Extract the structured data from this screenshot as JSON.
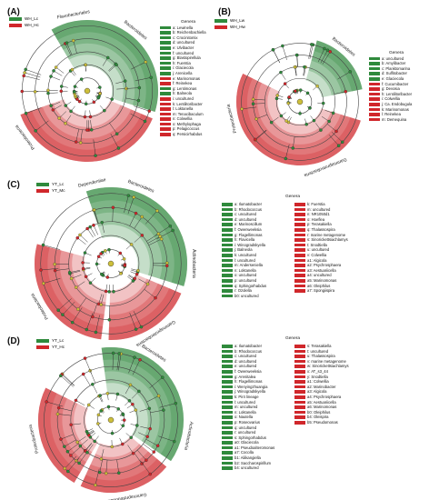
{
  "colors": {
    "green": "#2f8a3c",
    "red": "#d0272b",
    "lightgreen": "#cfe8cf",
    "lightred": "#f5c6c6",
    "yellow": "#cdbf3a"
  },
  "panels": [
    {
      "label": "(A)",
      "groups": [
        "WH_Lc",
        "WH_Hc"
      ],
      "clades": [
        "Flavobacteriales",
        "Bacteroidetes",
        "Proteobacteria"
      ],
      "legend_title": "Genera",
      "legend": [
        {
          "k": "a",
          "n": "Lewinella",
          "c": "g"
        },
        {
          "k": "b",
          "n": "Reichenbachiella",
          "c": "g"
        },
        {
          "k": "c",
          "n": "Crocinitomix",
          "c": "g"
        },
        {
          "k": "d",
          "n": "uncultured",
          "c": "g"
        },
        {
          "k": "e",
          "n": "Ulvibacter",
          "c": "g"
        },
        {
          "k": "f",
          "n": "uncultured",
          "c": "g"
        },
        {
          "k": "g",
          "n": "Blastopirellula",
          "c": "g"
        },
        {
          "k": "h",
          "n": "Fuerstia",
          "c": "g"
        },
        {
          "k": "i",
          "n": "Glaciecola",
          "c": "g"
        },
        {
          "k": "j",
          "n": "Arenicella",
          "c": "g"
        },
        {
          "k": "e",
          "n": "Marinomonas",
          "c": "r"
        },
        {
          "k": "f",
          "n": "Reinekea",
          "c": "r"
        },
        {
          "k": "g",
          "n": "Lentimonas",
          "c": "g"
        },
        {
          "k": "h",
          "n": "Balneola",
          "c": "g"
        },
        {
          "k": "i",
          "n": "uncultured",
          "c": "r"
        },
        {
          "k": "k",
          "n": "Lentilitoribacter",
          "c": "r"
        },
        {
          "k": "l",
          "n": "Loktanella",
          "c": "r"
        },
        {
          "k": "m",
          "n": "Tenacibaculum",
          "c": "r"
        },
        {
          "k": "n",
          "n": "Colwellia",
          "c": "r"
        },
        {
          "k": "o",
          "n": "Methylophaga",
          "c": "r"
        },
        {
          "k": "p",
          "n": "Pelagicoccus",
          "c": "r"
        },
        {
          "k": "q",
          "n": "Persicirhabdus",
          "c": "r"
        }
      ]
    },
    {
      "label": "(B)",
      "groups": [
        "WH_Lw",
        "WH_Hw"
      ],
      "clades": [
        "Bacteroidetes",
        "Gammaproteobacteria",
        "Proteobacteria"
      ],
      "legend_title": "Genera",
      "legend": [
        {
          "k": "a",
          "n": "uncultured",
          "c": "g"
        },
        {
          "k": "b",
          "n": "Amylibacter",
          "c": "g"
        },
        {
          "k": "c",
          "n": "Planktomarina",
          "c": "g"
        },
        {
          "k": "d",
          "n": "Sulfitobacter",
          "c": "g"
        },
        {
          "k": "e",
          "n": "Glaciecola",
          "c": "g"
        },
        {
          "k": "f",
          "n": "Cucumibacter",
          "c": "r"
        },
        {
          "k": "g",
          "n": "Devosia",
          "c": "r"
        },
        {
          "k": "h",
          "n": "Lentilitoribacter",
          "c": "r"
        },
        {
          "k": "i",
          "n": "Colwellia",
          "c": "r"
        },
        {
          "k": "j",
          "n": "Ca. Endobugula",
          "c": "r"
        },
        {
          "k": "k",
          "n": "Marinomonas",
          "c": "r"
        },
        {
          "k": "l",
          "n": "Reinekea",
          "c": "r"
        },
        {
          "k": "m",
          "n": "Demequina",
          "c": "r"
        }
      ]
    },
    {
      "label": "(C)",
      "groups": [
        "YT_Lc",
        "YT_Mc"
      ],
      "clades": [
        "Bacteroidetes",
        "Dependentiae",
        "Actinobacteria",
        "Gammaproteobacteria",
        "Proteobacteria"
      ],
      "legend_title": "Genera",
      "legend1": [
        {
          "k": "a",
          "n": "Ilumatobacter",
          "c": "g"
        },
        {
          "k": "b",
          "n": "Rhodococcus",
          "c": "g"
        },
        {
          "k": "c",
          "n": "uncultured",
          "c": "g"
        },
        {
          "k": "d",
          "n": "uncultured",
          "c": "g"
        },
        {
          "k": "e",
          "n": "Marinoscillum",
          "c": "g"
        },
        {
          "k": "f",
          "n": "Owenweeksia",
          "c": "g"
        },
        {
          "k": "g",
          "n": "Flagellimonas",
          "c": "g"
        },
        {
          "k": "h",
          "n": "Flavicella",
          "c": "g"
        },
        {
          "k": "i",
          "n": "Winogradskyella",
          "c": "g"
        },
        {
          "k": "j",
          "n": "Balneola",
          "c": "g"
        },
        {
          "k": "k",
          "n": "uncultured",
          "c": "g"
        },
        {
          "k": "l",
          "n": "uncultured",
          "c": "g"
        },
        {
          "k": "m",
          "n": "Anderseniella",
          "c": "g"
        },
        {
          "k": "n",
          "n": "Loktanella",
          "c": "g"
        },
        {
          "k": "o",
          "n": "uncultured",
          "c": "g"
        },
        {
          "k": "p",
          "n": "uncultured",
          "c": "g"
        },
        {
          "k": "q",
          "n": "Sphingorhabdus",
          "c": "g"
        },
        {
          "k": "r",
          "n": "Ozolella",
          "c": "g"
        },
        {
          "k": "b0",
          "n": "uncultured",
          "c": "g"
        }
      ],
      "legend2": [
        {
          "k": "k",
          "n": "Fuerstia",
          "c": "r"
        },
        {
          "k": "m",
          "n": "uncultured",
          "c": "r"
        },
        {
          "k": "n",
          "n": "NR1050d1",
          "c": "r"
        },
        {
          "k": "o",
          "n": "Hoeflea",
          "c": "r"
        },
        {
          "k": "p",
          "n": "Terasakiella",
          "c": "r"
        },
        {
          "k": "q",
          "n": "Thalassospira",
          "c": "r"
        },
        {
          "k": "r",
          "n": "marine metagenome",
          "c": "r"
        },
        {
          "k": "s",
          "n": "Sinorickettsiachlamys",
          "c": "r"
        },
        {
          "k": "t",
          "n": "Snodtiella",
          "c": "r"
        },
        {
          "k": "u",
          "n": "uncultured",
          "c": "r"
        },
        {
          "k": "v",
          "n": "Colwellia",
          "c": "r"
        },
        {
          "k": "a1",
          "n": "Algicola",
          "c": "r"
        },
        {
          "k": "a2",
          "n": "Psychrosphaera",
          "c": "r"
        },
        {
          "k": "a3",
          "n": "Aestuariicella",
          "c": "r"
        },
        {
          "k": "a4",
          "n": "uncultured",
          "c": "r"
        },
        {
          "k": "a5",
          "n": "Marinomonas",
          "c": "r"
        },
        {
          "k": "a6",
          "n": "Oleiphilus",
          "c": "r"
        },
        {
          "k": "a7",
          "n": "Spongiispira",
          "c": "r"
        }
      ]
    },
    {
      "label": "(D)",
      "groups": [
        "YT_Lc",
        "YT_Hc"
      ],
      "clades": [
        "Bacteroidetes",
        "Actinobacteria",
        "Gammaproteobacteria",
        "Proteobacteria"
      ],
      "legend_title": "Genera",
      "legend1": [
        {
          "k": "a",
          "n": "Ilumatobacter",
          "c": "g"
        },
        {
          "k": "b",
          "n": "Rhodococcus",
          "c": "g"
        },
        {
          "k": "c",
          "n": "uncultured",
          "c": "g"
        },
        {
          "k": "d",
          "n": "uncultured",
          "c": "g"
        },
        {
          "k": "e",
          "n": "uncultured",
          "c": "g"
        },
        {
          "k": "f",
          "n": "Owenweeksia",
          "c": "g"
        },
        {
          "k": "g",
          "n": "Arenitalea",
          "c": "g"
        },
        {
          "k": "h",
          "n": "Flagellimonas",
          "c": "g"
        },
        {
          "k": "i",
          "n": "Wenyingzhuangia",
          "c": "g"
        },
        {
          "k": "j",
          "n": "Winogradskyella",
          "c": "g"
        },
        {
          "k": "k",
          "n": "Pir4 lineage",
          "c": "g"
        },
        {
          "k": "l",
          "n": "uncultured",
          "c": "g"
        },
        {
          "k": "m",
          "n": "uncultured",
          "c": "g"
        },
        {
          "k": "n",
          "n": "Loktanella",
          "c": "g"
        },
        {
          "k": "o",
          "n": "Nautella",
          "c": "g"
        },
        {
          "k": "p",
          "n": "Roseovarius",
          "c": "g"
        },
        {
          "k": "q",
          "n": "uncultured",
          "c": "g"
        },
        {
          "k": "r",
          "n": "uncultured",
          "c": "g"
        },
        {
          "k": "s",
          "n": "Sphingorhabdus",
          "c": "g"
        },
        {
          "k": "a0",
          "n": "Glaciecola",
          "c": "g"
        },
        {
          "k": "a1",
          "n": "Pseudoalteromonas",
          "c": "g"
        },
        {
          "k": "a7",
          "n": "Cocolla",
          "c": "g"
        },
        {
          "k": "b1",
          "n": "Aliikangiella",
          "c": "g"
        },
        {
          "k": "b2",
          "n": "Saccharospirillum",
          "c": "g"
        },
        {
          "k": "b4",
          "n": "uncultured",
          "c": "g"
        }
      ],
      "legend2": [
        {
          "k": "s",
          "n": "Terasakiella",
          "c": "r"
        },
        {
          "k": "t",
          "n": "uncultured",
          "c": "r"
        },
        {
          "k": "u",
          "n": "Thalassospira",
          "c": "r"
        },
        {
          "k": "v",
          "n": "marine metagenome",
          "c": "r"
        },
        {
          "k": "w",
          "n": "Sinorickettsiachlamys",
          "c": "r"
        },
        {
          "k": "x",
          "n": "AT_s3_44",
          "c": "r"
        },
        {
          "k": "y",
          "n": "Snodtiella",
          "c": "r"
        },
        {
          "k": "a1",
          "n": "Colwellia",
          "c": "r"
        },
        {
          "k": "a2",
          "n": "Marinobacter",
          "c": "r"
        },
        {
          "k": "a3",
          "n": "Algicola",
          "c": "r"
        },
        {
          "k": "a4",
          "n": "Psychrosphaera",
          "c": "r"
        },
        {
          "k": "a5",
          "n": "Aestuariicella",
          "c": "r"
        },
        {
          "k": "a6",
          "n": "Marinomonas",
          "c": "r"
        },
        {
          "k": "b0",
          "n": "Oleiphilus",
          "c": "r"
        },
        {
          "k": "b4",
          "n": "Oleispira",
          "c": "r"
        },
        {
          "k": "b5",
          "n": "Pseudomonas",
          "c": "r"
        }
      ]
    }
  ]
}
